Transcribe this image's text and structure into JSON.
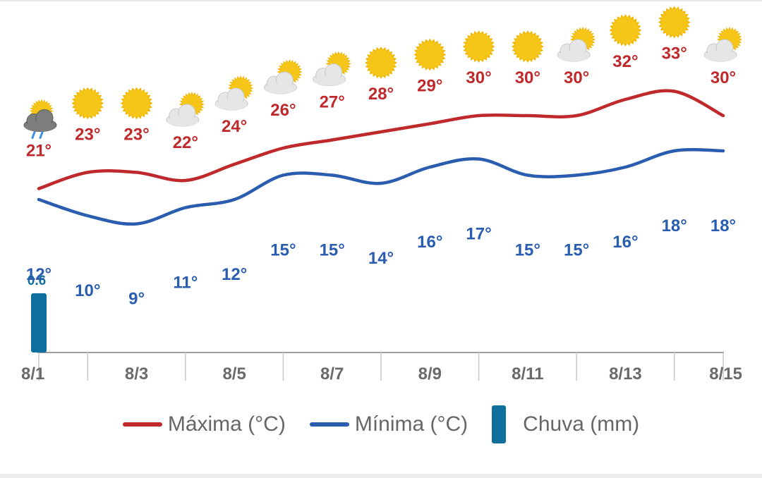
{
  "colors": {
    "max": "#c0292b",
    "min": "#2a5db0",
    "rain": "#0e6f9c",
    "axis": "#9e9e9e",
    "tick_text": "#6a6a6a",
    "sun": "#f5c518",
    "cloud": "#e6e6e6",
    "storm_cloud": "#7d7d7d"
  },
  "chart_data": {
    "type": "line",
    "x": [
      "8/1",
      "8/2",
      "8/3",
      "8/4",
      "8/5",
      "8/6",
      "8/7",
      "8/8",
      "8/9",
      "8/10",
      "8/11",
      "8/12",
      "8/13",
      "8/14",
      "8/15"
    ],
    "tick_labels": [
      "8/1",
      "8/3",
      "8/5",
      "8/7",
      "8/9",
      "8/11",
      "8/13",
      "8/15"
    ],
    "series": [
      {
        "name": "Máxima (°C)",
        "values": [
          21,
          23,
          23,
          22,
          24,
          26,
          27,
          28,
          29,
          30,
          30,
          30,
          32,
          33,
          30
        ],
        "labels": [
          "21°",
          "23°",
          "23°",
          "22°",
          "24°",
          "26°",
          "27°",
          "28°",
          "29°",
          "30°",
          "30°",
          "30°",
          "32°",
          "33°",
          "30°"
        ]
      },
      {
        "name": "Mínima (°C)",
        "values": [
          12,
          10,
          9,
          11,
          12,
          15,
          15,
          14,
          16,
          17,
          15,
          15,
          16,
          18,
          18
        ],
        "labels": [
          "12°",
          "10°",
          "9°",
          "11°",
          "12°",
          "15°",
          "15°",
          "14°",
          "16°",
          "17°",
          "15°",
          "15°",
          "16°",
          "18°",
          "18°"
        ]
      },
      {
        "name": "Chuva (mm)",
        "type": "bar",
        "values": [
          0.6,
          0,
          0,
          0,
          0,
          0,
          0,
          0,
          0,
          0,
          0,
          0,
          0,
          0,
          0
        ],
        "labels": [
          "0.6"
        ]
      }
    ],
    "icons": [
      "thunderstorm-rain-icon",
      "sun-icon",
      "sun-icon",
      "partly-cloudy-icon",
      "partly-cloudy-icon",
      "partly-cloudy-icon",
      "partly-cloudy-icon",
      "sun-icon",
      "sun-icon",
      "sun-icon",
      "sun-icon",
      "partly-cloudy-icon",
      "sun-icon",
      "sun-icon",
      "partly-cloudy-icon"
    ],
    "grid": false,
    "legend_position": "bottom"
  },
  "legend": {
    "max_label": "Máxima (°C)",
    "min_label": "Mínima (°C)",
    "rain_label": "Chuva (mm)"
  }
}
